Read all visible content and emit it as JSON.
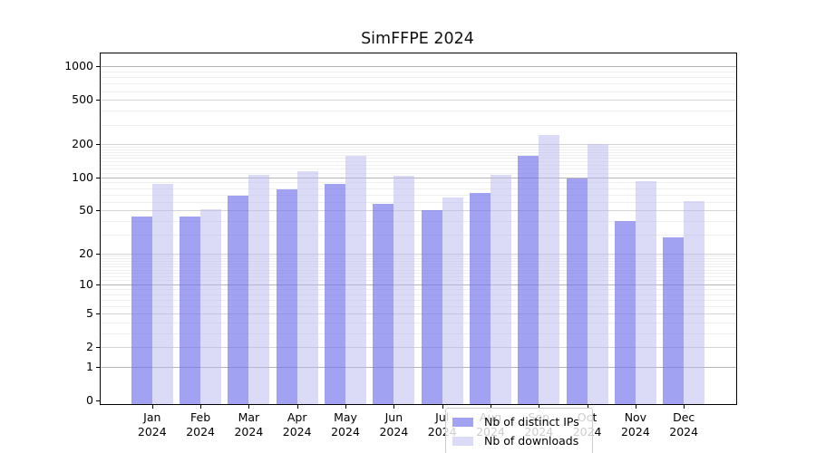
{
  "chart_data": {
    "type": "bar",
    "title": "SimFFPE 2024",
    "months": [
      "Jan",
      "Feb",
      "Mar",
      "Apr",
      "May",
      "Jun",
      "Jul",
      "Aug",
      "Sep",
      "Oct",
      "Nov",
      "Dec"
    ],
    "year": "2024",
    "series": [
      {
        "name": "Nb of distinct IPs",
        "color": "rgba(112,112,237,0.65)",
        "values": [
          44,
          44,
          68,
          78,
          87,
          57,
          50,
          72,
          158,
          98,
          40,
          28
        ]
      },
      {
        "name": "Nb of downloads",
        "color": "rgba(183,183,241,0.5)",
        "values": [
          87,
          51,
          105,
          114,
          156,
          104,
          65,
          105,
          243,
          200,
          93,
          61
        ]
      }
    ],
    "y_ticks": [
      0,
      1,
      2,
      5,
      10,
      20,
      50,
      100,
      200,
      500,
      1000
    ],
    "y_scale": "log10(1+y)",
    "ylim": [
      0,
      1300
    ],
    "grid": true,
    "legend_position": "inside-bottom-center",
    "legend_labels": [
      "Nb of distinct IPs",
      "Nb of downloads"
    ]
  }
}
